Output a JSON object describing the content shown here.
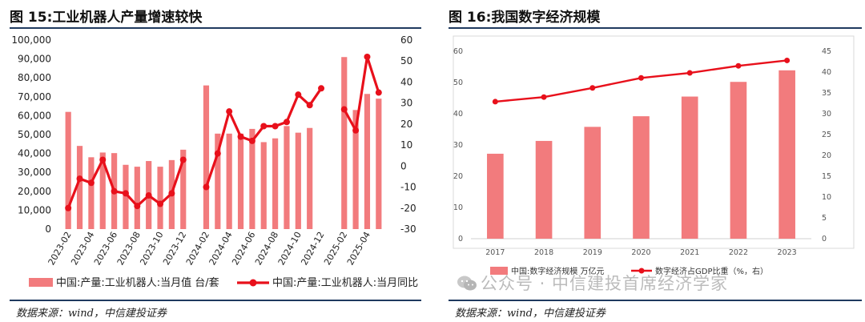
{
  "source_text": "数据来源：wind，中信建投证券",
  "watermark": "公众号 · 中信建投首席经济学家",
  "colors": {
    "bar": "#f27b7d",
    "line": "#e8101b",
    "rule": "#1f3a5f"
  },
  "chart_data": [
    {
      "type": "bar",
      "title": "图 15:工业机器人产量增速较快",
      "categories": [
        "2023-02",
        "2023-03",
        "2023-04",
        "2023-05",
        "2023-06",
        "2023-07",
        "2023-08",
        "2023-09",
        "2023-10",
        "2023-11",
        "2023-12",
        "2024-01",
        "2024-02",
        "2024-03",
        "2024-04",
        "2024-05",
        "2024-06",
        "2024-07",
        "2024-08",
        "2024-09",
        "2024-10",
        "2024-11",
        "2024-12",
        "2025-01",
        "2025-02",
        "2025-03",
        "2025-04",
        "2025-05"
      ],
      "x_tick_labels": [
        "2023-02",
        "2023-04",
        "2023-06",
        "2023-08",
        "2023-10",
        "2023-12",
        "2024-02",
        "2024-04",
        "2024-06",
        "2024-08",
        "2024-10",
        "2024-12",
        "2025-02",
        "2025-04"
      ],
      "series": [
        {
          "name": "中国:产量:工业机器人:当月值 台/套",
          "kind": "bar",
          "axis": "left",
          "values": [
            62000,
            44000,
            38000,
            40500,
            40200,
            34000,
            33000,
            36000,
            33000,
            36500,
            42000,
            null,
            76000,
            50500,
            50500,
            50500,
            53000,
            46000,
            48000,
            54500,
            51000,
            53500,
            null,
            null,
            91000,
            63000,
            71500,
            69000
          ]
        },
        {
          "name": "中国:产量:工业机器人:当月同比",
          "kind": "line",
          "axis": "right",
          "values": [
            -20,
            -6,
            -8,
            3,
            -12,
            -13,
            -19,
            -14,
            -18,
            -13,
            3,
            null,
            -10,
            6,
            26,
            14,
            12,
            19,
            19,
            21,
            34,
            29,
            37,
            null,
            27,
            17,
            52,
            35
          ]
        }
      ],
      "y_left": {
        "ticks": [
          "0",
          "10,000",
          "20,000",
          "30,000",
          "40,000",
          "50,000",
          "60,000",
          "70,000",
          "80,000",
          "90,000",
          "100,000"
        ],
        "min": 0,
        "max": 100000
      },
      "y_right": {
        "ticks": [
          "-30",
          "-20",
          "-10",
          "0",
          "10",
          "20",
          "30",
          "40",
          "50",
          "60"
        ],
        "min": -30,
        "max": 60
      },
      "legend": "bottom"
    },
    {
      "type": "bar",
      "title": "图 16:我国数字经济规模",
      "categories": [
        "2017",
        "2018",
        "2019",
        "2020",
        "2021",
        "2022",
        "2023"
      ],
      "series": [
        {
          "name": "中国:数字经济规模 万亿元",
          "kind": "bar",
          "axis": "left",
          "values": [
            27.2,
            31.3,
            35.8,
            39.2,
            45.5,
            50.2,
            53.9
          ]
        },
        {
          "name": "数字经济占GDP比重（%，右）",
          "kind": "line",
          "axis": "right",
          "values": [
            32.9,
            34.0,
            36.2,
            38.6,
            39.8,
            41.5,
            42.8
          ]
        }
      ],
      "y_left": {
        "ticks": [
          "0",
          "10",
          "20",
          "30",
          "40",
          "50",
          "60"
        ],
        "min": 0,
        "max": 60
      },
      "y_right": {
        "ticks": [
          "0",
          "5",
          "10",
          "15",
          "20",
          "25",
          "30",
          "35",
          "40",
          "45"
        ],
        "min": 0,
        "max": 45
      },
      "legend": "bottom"
    }
  ]
}
